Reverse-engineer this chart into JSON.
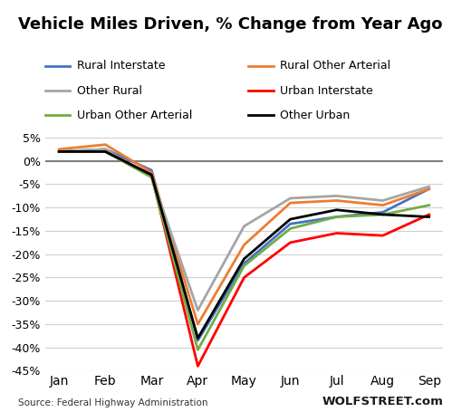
{
  "title": "Vehicle Miles Driven, % Change from Year Ago",
  "months": [
    "Jan",
    "Feb",
    "Mar",
    "Apr",
    "May",
    "Jun",
    "Jul",
    "Aug",
    "Sep"
  ],
  "series": [
    {
      "label": "Rural Interstate",
      "color": "#4472C4",
      "values": [
        2.0,
        2.5,
        -2.0,
        -38.5,
        -22.0,
        -13.5,
        -12.0,
        -11.0,
        -6.0
      ]
    },
    {
      "label": "Rural Other Arterial",
      "color": "#ED7D31",
      "values": [
        2.5,
        3.5,
        -2.5,
        -35.0,
        -18.0,
        -9.0,
        -8.5,
        -9.5,
        -6.0
      ]
    },
    {
      "label": "Other Rural",
      "color": "#A5A5A5",
      "values": [
        2.0,
        2.5,
        -3.5,
        -32.0,
        -14.0,
        -8.0,
        -7.5,
        -8.5,
        -5.5
      ]
    },
    {
      "label": "Urban Interstate",
      "color": "#FF0000",
      "values": [
        2.0,
        2.0,
        -3.0,
        -44.0,
        -25.0,
        -17.5,
        -15.5,
        -16.0,
        -11.5
      ]
    },
    {
      "label": "Urban Other Arterial",
      "color": "#70AD47",
      "values": [
        2.0,
        2.0,
        -3.5,
        -40.5,
        -22.5,
        -14.5,
        -12.0,
        -11.5,
        -9.5
      ]
    },
    {
      "label": "Other Urban",
      "color": "#000000",
      "values": [
        2.0,
        2.0,
        -3.0,
        -38.0,
        -21.0,
        -12.5,
        -10.5,
        -11.5,
        -12.0
      ]
    }
  ],
  "ylim": [
    -45,
    8
  ],
  "yticks": [
    5,
    0,
    -5,
    -10,
    -15,
    -20,
    -25,
    -30,
    -35,
    -40,
    -45
  ],
  "source_text": "Source: Federal Highway Administration",
  "watermark": "WOLFSTREET.com",
  "background_color": "#ffffff",
  "grid_color": "#d0d0d0",
  "zero_line_color": "#808080"
}
